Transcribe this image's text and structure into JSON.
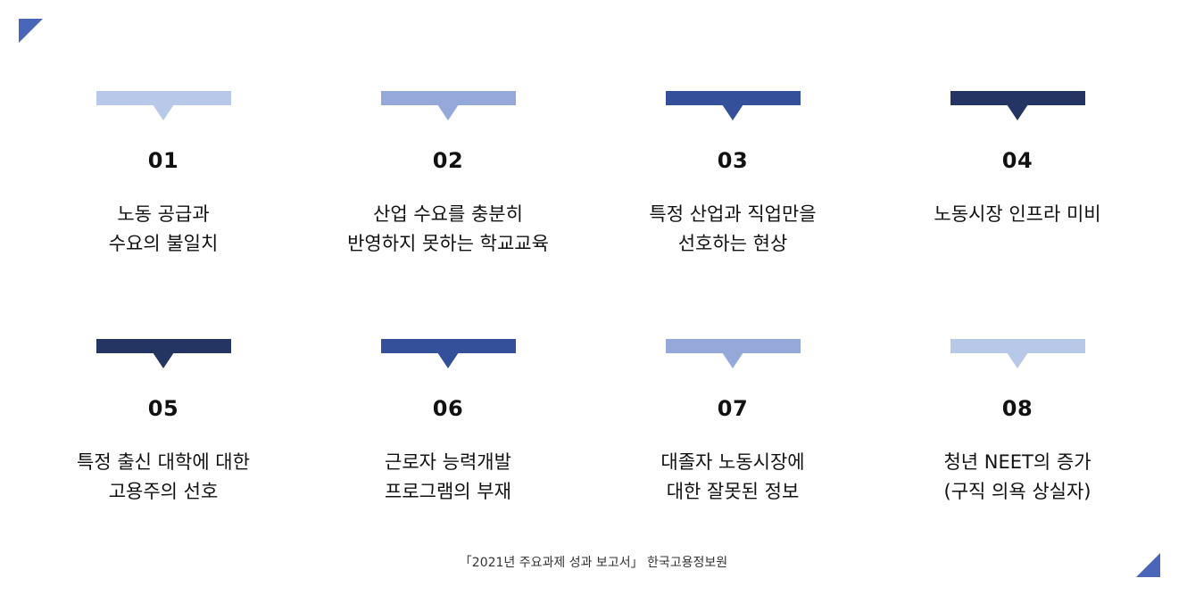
{
  "items": [
    {
      "num": "01",
      "line1": "노동 공급과",
      "line2": "수요의 불일치",
      "color": "#b7c8e8"
    },
    {
      "num": "02",
      "line1": "산업 수요를 충분히",
      "line2": "반영하지 못하는 학교교육",
      "color": "#94a9da"
    },
    {
      "num": "03",
      "line1": "특정 산업과 직업만을",
      "line2": "선호하는 현상",
      "color": "#34509a"
    },
    {
      "num": "04",
      "line1": "노동시장 인프라 미비",
      "line2": "",
      "color": "#243563"
    },
    {
      "num": "05",
      "line1": "특정 출신 대학에 대한",
      "line2": "고용주의 선호",
      "color": "#243563"
    },
    {
      "num": "06",
      "line1": "근로자 능력개발",
      "line2": "프로그램의 부재",
      "color": "#34509a"
    },
    {
      "num": "07",
      "line1": "대졸자 노동시장에",
      "line2": "대한 잘못된 정보",
      "color": "#94a9da"
    },
    {
      "num": "08",
      "line1": "청년 NEET의 증가",
      "line2": "(구직 의욕 상실자)",
      "color": "#b7c8e8"
    }
  ],
  "footer": "「2021년 주요과제 성과 보고서」 한국고용정보원",
  "accent_color": "#4a66b8"
}
